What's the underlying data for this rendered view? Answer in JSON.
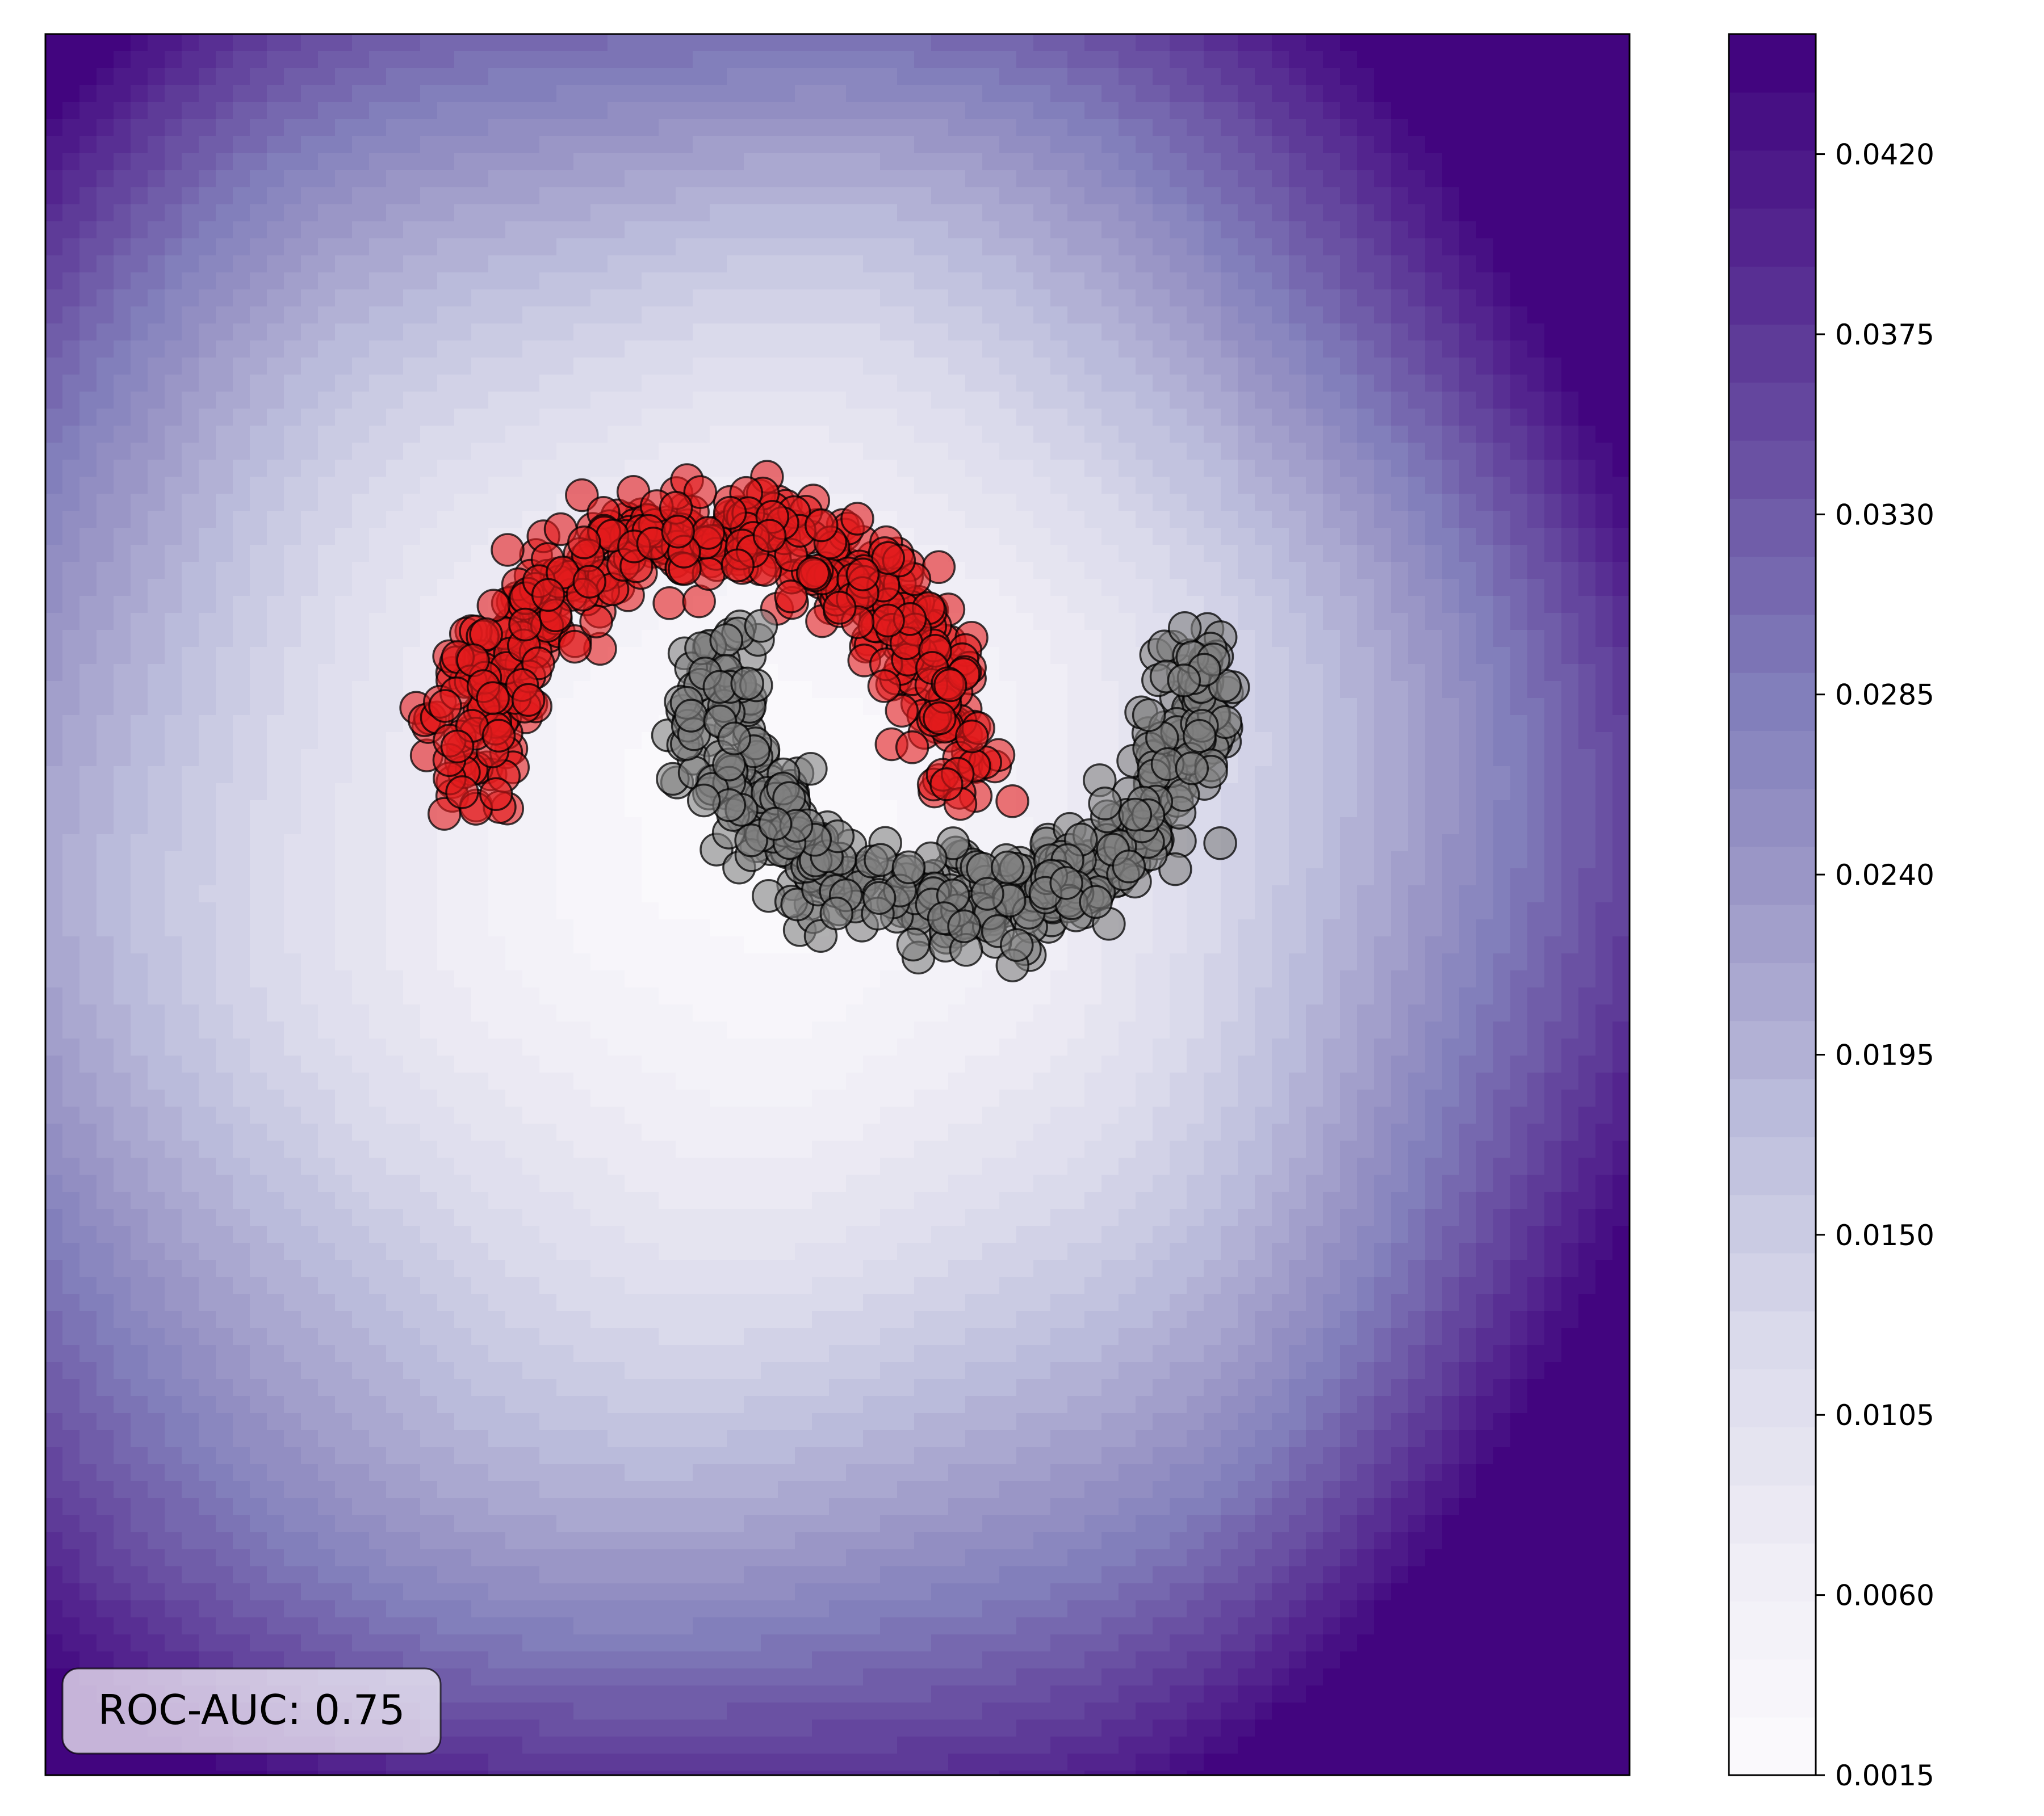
{
  "chart_data": {
    "type": "scatter",
    "title": "",
    "xlabel": "",
    "ylabel": "",
    "xlim": [
      -2.75,
      3.75
    ],
    "ylim": [
      -4.0,
      3.0
    ],
    "grid": false,
    "axis_ticks_visible": false,
    "background": {
      "type": "filled-contour",
      "colormap": "Purples",
      "description_of_field": "uncertainty-like field, lowest near the data center, increasing toward the corners, highest at top-right",
      "min_value": 0.0015,
      "max_value": 0.045,
      "levels": 30,
      "field_center": [
        0.2,
        -0.1
      ]
    },
    "colorbar": {
      "ticks": [
        "0.0015",
        "0.0060",
        "0.0105",
        "0.0150",
        "0.0195",
        "0.0240",
        "0.0285",
        "0.0330",
        "0.0375",
        "0.0420"
      ],
      "tick_values": [
        0.0015,
        0.006,
        0.0105,
        0.015,
        0.0195,
        0.024,
        0.0285,
        0.033,
        0.0375,
        0.042
      ],
      "vmin": 0.0015,
      "vmax": 0.045
    },
    "series": [
      {
        "description": "upper moon",
        "color": "#e31a1c",
        "edge_color": "#000000",
        "alpha": 0.6,
        "shape": "arc",
        "center": [
          0.0,
          0.0
        ],
        "radius": 1.0,
        "angle_range_deg": [
          0,
          180
        ],
        "noise": 0.1,
        "count": 500
      },
      {
        "description": "lower moon",
        "color": "#808080",
        "edge_color": "#000000",
        "alpha": 0.6,
        "shape": "arc",
        "center": [
          1.0,
          0.5
        ],
        "radius": 1.0,
        "angle_range_deg": [
          180,
          360
        ],
        "noise": 0.1,
        "count": 500
      }
    ],
    "annotation": {
      "text": "ROC-AUC: 0.75",
      "position": "bottom-left",
      "box_facecolor": "#ffffff",
      "box_edgecolor": "#000000"
    }
  }
}
